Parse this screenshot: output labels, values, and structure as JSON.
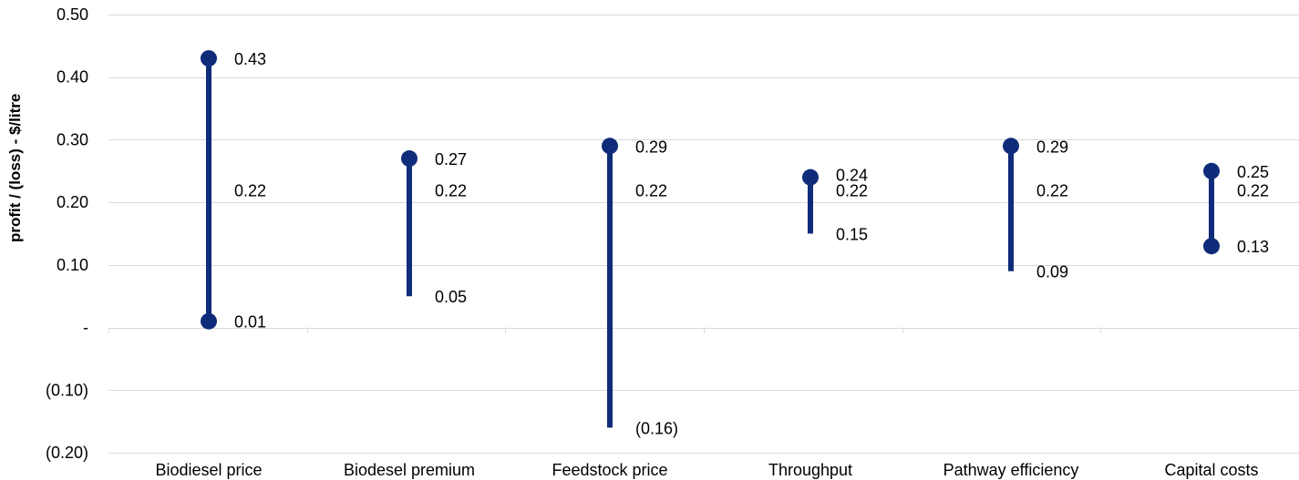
{
  "chart_data": {
    "type": "range",
    "title": "",
    "xlabel": "",
    "ylabel": "profit / (loss) - $/litre",
    "ylim": [
      -0.2,
      0.5
    ],
    "grid": true,
    "legend": "none",
    "yticks": [
      0.5,
      0.4,
      0.3,
      0.2,
      0.1,
      0.0,
      -0.1,
      -0.2
    ],
    "ytick_labels": [
      "0.50",
      "0.40",
      "0.30",
      "0.20",
      "0.10",
      "-",
      "(0.10)",
      "(0.20)"
    ],
    "categories": [
      "Biodiesel price",
      "Biodesel premium",
      "Feedstock price",
      "Throughput",
      "Pathway efficiency",
      "Capital costs"
    ],
    "series": [
      {
        "high": [
          0.43,
          0.27,
          0.29,
          0.24,
          0.29,
          0.25
        ],
        "base": [
          0.22,
          0.22,
          0.22,
          0.22,
          0.22,
          0.22
        ],
        "low": [
          0.01,
          0.05,
          -0.16,
          0.15,
          0.09,
          0.13
        ],
        "high_labels": [
          "0.43",
          "0.27",
          "0.29",
          "0.24",
          "0.29",
          "0.25"
        ],
        "base_labels": [
          "0.22",
          "0.22",
          "0.22",
          "0.22",
          "0.22",
          "0.22"
        ],
        "low_labels": [
          "0.01",
          "0.05",
          "(0.16)",
          "0.15",
          "0.09",
          "0.13"
        ],
        "high_marker": [
          true,
          true,
          true,
          true,
          true,
          true
        ],
        "low_marker": [
          true,
          false,
          false,
          false,
          false,
          true
        ]
      }
    ],
    "colors": {
      "bar": "#0f2c7a",
      "grid": "#d9d9d9"
    }
  }
}
